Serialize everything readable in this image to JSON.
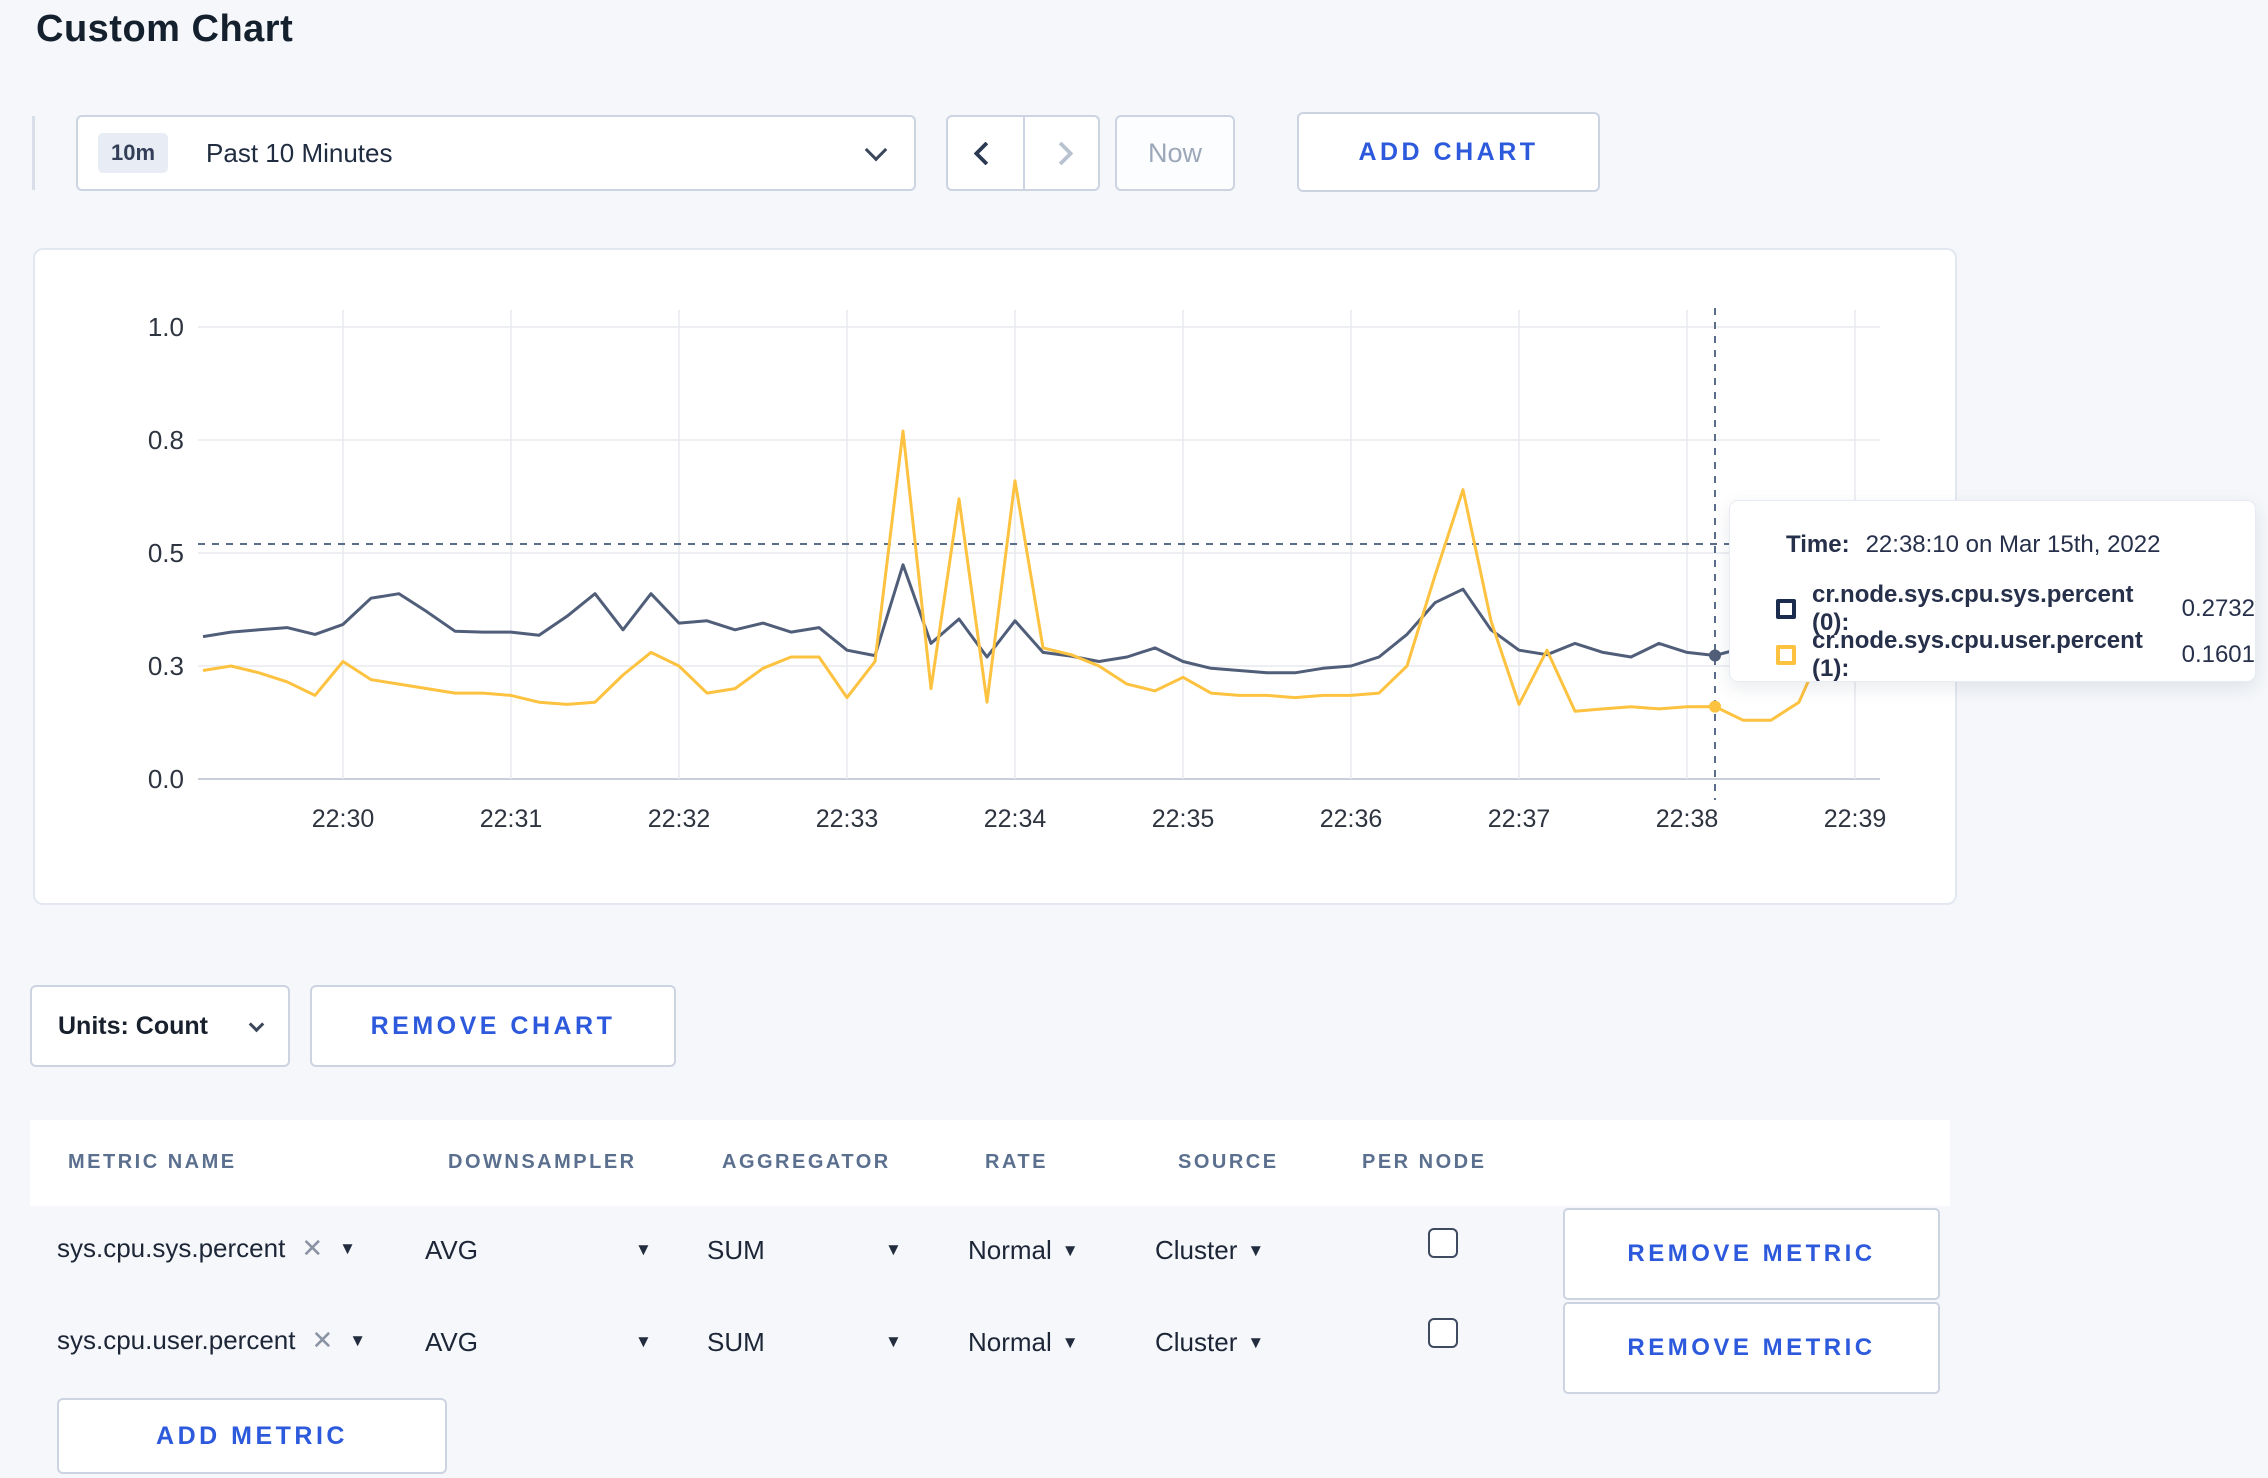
{
  "page": {
    "title": "Custom Chart"
  },
  "toolbar": {
    "time_range": {
      "badge": "10m",
      "label": "Past 10 Minutes"
    },
    "now_label": "Now",
    "add_chart_label": "ADD CHART"
  },
  "tooltip": {
    "time_label": "Time:",
    "time_value": "22:38:10 on Mar 15th, 2022",
    "rows": [
      {
        "label": "cr.node.sys.cpu.sys.percent (0):",
        "value": "0.2732",
        "color": "#1b2c4e"
      },
      {
        "label": "cr.node.sys.cpu.user.percent (1):",
        "value": "0.1601",
        "color": "#fdc240"
      }
    ]
  },
  "units": {
    "label": "Units: Count"
  },
  "remove_chart_label": "REMOVE CHART",
  "metrics_table": {
    "headers": [
      "METRIC NAME",
      "DOWNSAMPLER",
      "AGGREGATOR",
      "RATE",
      "SOURCE",
      "PER NODE"
    ],
    "rows": [
      {
        "metric": "sys.cpu.sys.percent",
        "downsampler": "AVG",
        "aggregator": "SUM",
        "rate": "Normal",
        "source": "Cluster",
        "per_node_checked": false,
        "remove_label": "REMOVE METRIC"
      },
      {
        "metric": "sys.cpu.user.percent",
        "downsampler": "AVG",
        "aggregator": "SUM",
        "rate": "Normal",
        "source": "Cluster",
        "per_node_checked": false,
        "remove_label": "REMOVE METRIC"
      }
    ],
    "add_metric_label": "ADD METRIC"
  },
  "chart_data": {
    "type": "line",
    "title": "",
    "x_start": "22:29:10",
    "x_interval_seconds": 10,
    "x_ticks": [
      "22:30",
      "22:31",
      "22:32",
      "22:33",
      "22:34",
      "22:35",
      "22:36",
      "22:37",
      "22:38",
      "22:39"
    ],
    "y_ticks": [
      {
        "value": 0,
        "label": "0.0"
      },
      {
        "value": 0.25,
        "label": "0.3"
      },
      {
        "value": 0.5,
        "label": "0.5"
      },
      {
        "value": 0.75,
        "label": "0.8"
      },
      {
        "value": 1.0,
        "label": "1.0"
      }
    ],
    "ylim": [
      0,
      1
    ],
    "grid": true,
    "guideline_value": 0.52,
    "hover_index": 54,
    "hover_time": "22:38:10",
    "series": [
      {
        "name": "cr.node.sys.cpu.sys.percent",
        "node": "(0)",
        "color": "#505e79",
        "hover_value": 0.2732,
        "values": [
          0.315,
          0.325,
          0.33,
          0.335,
          0.32,
          0.342,
          0.4,
          0.41,
          0.37,
          0.327,
          0.325,
          0.325,
          0.318,
          0.36,
          0.41,
          0.33,
          0.41,
          0.345,
          0.35,
          0.33,
          0.345,
          0.325,
          0.335,
          0.285,
          0.273,
          0.474,
          0.3,
          0.354,
          0.27,
          0.35,
          0.28,
          0.272,
          0.26,
          0.27,
          0.29,
          0.26,
          0.245,
          0.24,
          0.235,
          0.235,
          0.245,
          0.25,
          0.27,
          0.32,
          0.39,
          0.42,
          0.33,
          0.285,
          0.275,
          0.3,
          0.28,
          0.27,
          0.3,
          0.28,
          0.2732,
          0.29,
          0.28,
          0.29,
          0.3,
          0.3
        ]
      },
      {
        "name": "cr.node.sys.cpu.user.percent",
        "node": "(1)",
        "color": "#fdc240",
        "hover_value": 0.1601,
        "values": [
          0.24,
          0.25,
          0.235,
          0.215,
          0.185,
          0.26,
          0.22,
          0.21,
          0.2,
          0.19,
          0.19,
          0.185,
          0.17,
          0.165,
          0.17,
          0.23,
          0.28,
          0.25,
          0.19,
          0.2,
          0.245,
          0.27,
          0.27,
          0.18,
          0.26,
          0.77,
          0.2,
          0.62,
          0.17,
          0.66,
          0.29,
          0.275,
          0.25,
          0.21,
          0.195,
          0.225,
          0.19,
          0.185,
          0.185,
          0.18,
          0.185,
          0.185,
          0.19,
          0.25,
          0.45,
          0.64,
          0.35,
          0.165,
          0.285,
          0.15,
          0.155,
          0.16,
          0.155,
          0.16,
          0.1601,
          0.13,
          0.13,
          0.17,
          0.31,
          0.24
        ]
      }
    ]
  }
}
